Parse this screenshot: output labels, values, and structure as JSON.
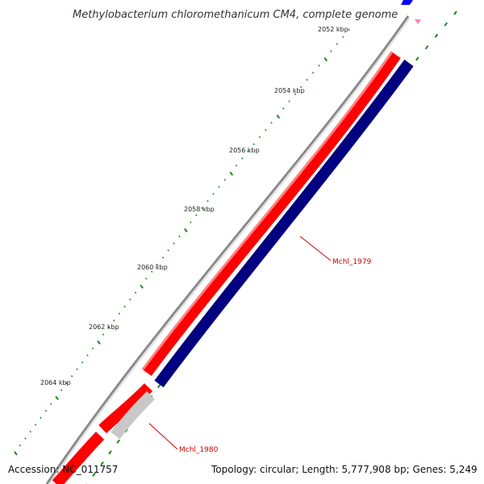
{
  "title": "Methylobacterium chloromethanicum CM4, complete genome",
  "ticks": [
    {
      "label": "2052 kbp"
    },
    {
      "label": "2054 kbp"
    },
    {
      "label": "2056 kbp"
    },
    {
      "label": "2058 kbp"
    },
    {
      "label": "2060 kbp"
    },
    {
      "label": "2062 kbp"
    },
    {
      "label": "2064 kbp"
    }
  ],
  "genes": [
    {
      "label": "Mchl_1979"
    },
    {
      "label": "Mchl_1980"
    }
  ],
  "footer": {
    "accession": "Accession: NC_011757",
    "summary": "Topology: circular; Length: 5,777,908 bp; Genes: 5,249"
  },
  "colors": {
    "backbone": "#8a8a8a",
    "forward_strand": "#ff0000",
    "reverse_strand": "#000080",
    "pseudo_gene": "#c8c8c8",
    "tick_marks": "#1a8a1a",
    "gene_label": "#cc0000"
  }
}
